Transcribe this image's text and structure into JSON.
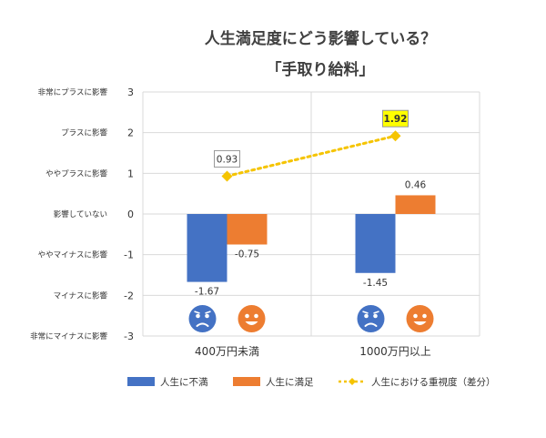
{
  "chart_data": {
    "type": "bar",
    "title": "人生満足度にどう影響している？",
    "subtitle": "「手取り給料」",
    "categories": [
      "400万円未満",
      "1000万円以上"
    ],
    "ylim": [
      -3,
      3
    ],
    "y_ticks": [
      3,
      2,
      1,
      0,
      -1,
      -2,
      -3
    ],
    "y_tick_labels": [
      "3",
      "2",
      "1",
      "0",
      "-1",
      "-2",
      "-3"
    ],
    "y_category_labels": [
      "非常にプラスに影響",
      "プラスに影響",
      "ややプラスに影響",
      "影響していない",
      "ややマイナスに影響",
      "マイナスに影響",
      "非常にマイナスに影響"
    ],
    "series": [
      {
        "name": "人生に不満",
        "type": "bar",
        "color": "#4472c4",
        "values": [
          -1.67,
          -1.45
        ],
        "labels": [
          "-1.67",
          "-1.45"
        ]
      },
      {
        "name": "人生に満足",
        "type": "bar",
        "color": "#ed7d31",
        "values": [
          -0.75,
          0.46
        ],
        "labels": [
          "-0.75",
          "0.46"
        ]
      },
      {
        "name": "人生における重視度（差分）",
        "type": "line",
        "color": "#f5c400",
        "values": [
          0.93,
          1.92
        ],
        "labels": [
          "0.93",
          "1.92"
        ]
      }
    ],
    "grid": true,
    "legend_position": "bottom",
    "icons": [
      "sad-face-icon",
      "smile-face-icon"
    ]
  }
}
